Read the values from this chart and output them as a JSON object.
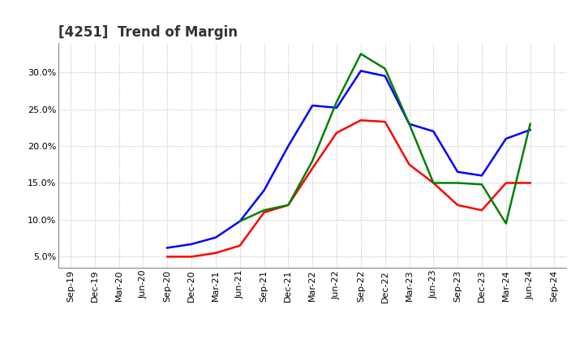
{
  "title": "[4251]  Trend of Margin",
  "x_labels": [
    "Sep-19",
    "Dec-19",
    "Mar-20",
    "Jun-20",
    "Sep-20",
    "Dec-20",
    "Mar-21",
    "Jun-21",
    "Sep-21",
    "Dec-21",
    "Mar-22",
    "Jun-22",
    "Sep-22",
    "Dec-22",
    "Mar-23",
    "Jun-23",
    "Sep-23",
    "Dec-23",
    "Mar-24",
    "Jun-24",
    "Sep-24"
  ],
  "ordinary_income": [
    null,
    null,
    null,
    null,
    6.2,
    6.7,
    7.6,
    9.8,
    14.0,
    20.0,
    25.5,
    25.2,
    30.2,
    29.5,
    23.0,
    22.0,
    16.5,
    16.0,
    21.0,
    22.2,
    null
  ],
  "net_income": [
    null,
    null,
    null,
    null,
    5.0,
    5.0,
    5.5,
    6.5,
    11.0,
    12.0,
    17.0,
    21.8,
    23.5,
    23.3,
    17.5,
    15.0,
    12.0,
    11.3,
    15.0,
    15.0,
    null
  ],
  "operating_cashflow": [
    null,
    null,
    null,
    null,
    null,
    null,
    null,
    9.8,
    11.3,
    12.0,
    18.0,
    26.0,
    32.5,
    30.5,
    23.0,
    15.0,
    15.0,
    14.8,
    9.5,
    23.0,
    null
  ],
  "ylim": [
    3.5,
    34.0
  ],
  "yticks": [
    5.0,
    10.0,
    15.0,
    20.0,
    25.0,
    30.0
  ],
  "ordinary_income_color": "#0000FF",
  "net_income_color": "#FF0000",
  "operating_cashflow_color": "#008000",
  "background_color": "#FFFFFF",
  "grid_color": "#BBBBBB",
  "title_fontsize": 12,
  "title_color": "#333333",
  "legend_fontsize": 9,
  "tick_fontsize": 8
}
